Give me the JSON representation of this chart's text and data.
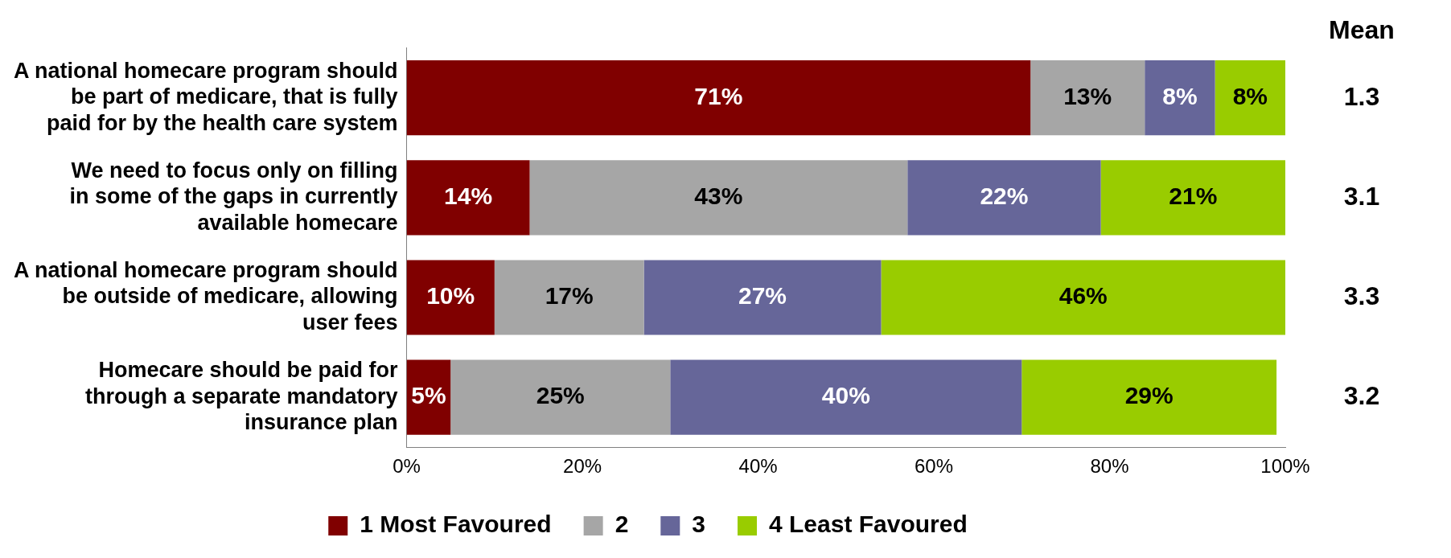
{
  "chart_data": {
    "type": "bar",
    "orientation": "horizontal",
    "stacked": true,
    "categories": [
      "A national homecare program should be part of medicare, that is fully paid for by the health care system",
      "We need to focus only on filling in some of the gaps in currently available homecare",
      "A national homecare program should be outside of medicare, allowing user fees",
      "Homecare should be paid for through a separate mandatory insurance plan"
    ],
    "series": [
      {
        "name": "1 Most Favoured",
        "color": "#800000",
        "values": [
          71,
          14,
          10,
          5
        ],
        "value_labels": [
          "71%",
          "14%",
          "10%",
          "5%"
        ]
      },
      {
        "name": "2",
        "color": "#a6a6a6",
        "values": [
          13,
          43,
          17,
          25
        ],
        "value_labels": [
          "13%",
          "43%",
          "17%",
          "25%"
        ]
      },
      {
        "name": "3",
        "color": "#666699",
        "values": [
          8,
          22,
          27,
          40
        ],
        "value_labels": [
          "8%",
          "22%",
          "27%",
          "40%"
        ]
      },
      {
        "name": "4 Least Favoured",
        "color": "#99cc00",
        "values": [
          8,
          21,
          46,
          29
        ],
        "value_labels": [
          "8%",
          "21%",
          "46%",
          "29%"
        ]
      }
    ],
    "xlim": [
      0,
      100
    ],
    "xticks": [
      {
        "value": 0,
        "label": "0%"
      },
      {
        "value": 20,
        "label": "20%"
      },
      {
        "value": 40,
        "label": "40%"
      },
      {
        "value": 60,
        "label": "60%"
      },
      {
        "value": 80,
        "label": "80%"
      },
      {
        "value": 100,
        "label": "100%"
      }
    ],
    "grid": false,
    "legend": "bottom",
    "annotations": [
      "Mean",
      "1.3",
      "3.1",
      "3.3",
      "3.2"
    ]
  }
}
